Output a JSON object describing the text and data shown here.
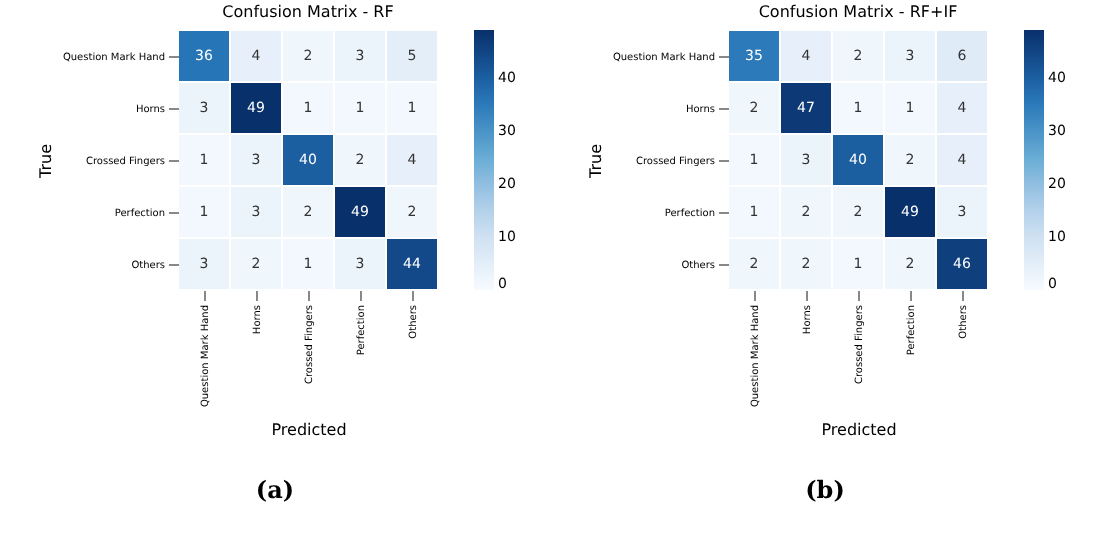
{
  "chart_data": [
    {
      "type": "heatmap",
      "title": "Confusion Matrix - RF",
      "xlabel": "Predicted",
      "ylabel": "True",
      "categories": [
        "Question Mark Hand",
        "Horns",
        "Crossed Fingers",
        "Perfection",
        "Others"
      ],
      "y_categories": [
        "Question Mark Hand",
        "Horns",
        "Crossed Fingers",
        "Perfection",
        "Others"
      ],
      "cells": [
        [
          36,
          4,
          2,
          3,
          5
        ],
        [
          3,
          49,
          1,
          1,
          1
        ],
        [
          1,
          3,
          40,
          2,
          4
        ],
        [
          1,
          3,
          2,
          49,
          2
        ],
        [
          3,
          2,
          1,
          3,
          44
        ]
      ],
      "data_labels": true,
      "clim": [
        0,
        49
      ],
      "cticks": [
        0,
        10,
        20,
        30,
        40
      ],
      "annotations": [
        "(a)"
      ]
    },
    {
      "type": "heatmap",
      "title": "Confusion Matrix - RF+IF",
      "xlabel": "Predicted",
      "ylabel": "True",
      "categories": [
        "Question Mark Hand",
        "Horns",
        "Crossed Fingers",
        "Perfection",
        "Others"
      ],
      "y_categories": [
        "Question Mark Hand",
        "Horns",
        "Crossed Fingers",
        "Perfection",
        "Others"
      ],
      "cells": [
        [
          35,
          4,
          2,
          3,
          6
        ],
        [
          2,
          47,
          1,
          1,
          4
        ],
        [
          1,
          3,
          40,
          2,
          4
        ],
        [
          1,
          2,
          2,
          49,
          3
        ],
        [
          2,
          2,
          1,
          2,
          46
        ]
      ],
      "data_labels": true,
      "clim": [
        0,
        49
      ],
      "cticks": [
        0,
        10,
        20,
        30,
        40
      ],
      "annotations": [
        "(b)"
      ]
    }
  ]
}
